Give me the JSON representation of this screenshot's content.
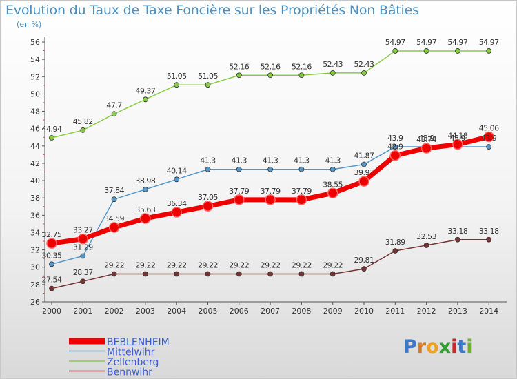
{
  "header": {
    "title": "Evolution du Taux de Taxe Foncière sur les Propriétés Non Bâties",
    "subtitle": "(en %)"
  },
  "logo": {
    "text": "Proxiti"
  },
  "chart_data": {
    "type": "line",
    "x": [
      2000,
      2001,
      2002,
      2003,
      2004,
      2005,
      2006,
      2007,
      2008,
      2009,
      2010,
      2011,
      2012,
      2013,
      2014
    ],
    "ylim": [
      26,
      56
    ],
    "yticks": [
      26,
      28,
      30,
      32,
      34,
      36,
      38,
      40,
      42,
      44,
      46,
      48,
      50,
      52,
      54,
      56
    ],
    "grid": false,
    "legend_position": "bottom-left",
    "series": [
      {
        "name": "BEBLENHEIM",
        "color": "#ee0000",
        "width": 7,
        "values": [
          32.75,
          33.27,
          34.59,
          35.63,
          36.34,
          37.05,
          37.79,
          37.79,
          37.79,
          38.55,
          39.91,
          42.9,
          43.74,
          44.18,
          45.06
        ],
        "labels": [
          "32.75",
          "33.27",
          "34.59",
          "35.63",
          "36.34",
          "37.05",
          "37.79",
          "37.79",
          "37.79",
          "38.55",
          "39.91",
          "42.9",
          "43.74",
          "44.18",
          "45.06"
        ]
      },
      {
        "name": "Mittelwihr",
        "color": "#5599cc",
        "width": 1.5,
        "values": [
          30.35,
          31.29,
          37.84,
          38.98,
          40.14,
          41.3,
          41.3,
          41.3,
          41.3,
          41.3,
          41.87,
          43.9,
          43.9,
          43.9,
          43.9
        ],
        "labels": [
          "30.35",
          "31.29",
          "37.84",
          "38.98",
          "40.14",
          "41.3",
          "41.3",
          "41.3",
          "41.3",
          "41.3",
          "41.87",
          "43.9",
          "43.9",
          "43.9",
          "43.9"
        ]
      },
      {
        "name": "Zellenberg",
        "color": "#88cc44",
        "width": 1.5,
        "values": [
          44.94,
          45.82,
          47.7,
          49.37,
          51.05,
          51.05,
          52.16,
          52.16,
          52.16,
          52.43,
          52.43,
          54.97,
          54.97,
          54.97,
          54.97
        ],
        "labels": [
          "44.94",
          "45.82",
          "47.7",
          "49.37",
          "51.05",
          "51.05",
          "52.16",
          "52.16",
          "52.16",
          "52.43",
          "52.43",
          "54.97",
          "54.97",
          "54.97",
          "54.97"
        ]
      },
      {
        "name": "Bennwihr",
        "color": "#773333",
        "width": 1.5,
        "values": [
          27.54,
          28.37,
          29.22,
          29.22,
          29.22,
          29.22,
          29.22,
          29.22,
          29.22,
          29.22,
          29.81,
          31.89,
          32.53,
          33.18,
          33.18
        ],
        "labels": [
          "27.54",
          "28.37",
          "29.22",
          "29.22",
          "29.22",
          "29.22",
          "29.22",
          "29.22",
          "29.22",
          "29.22",
          "29.81",
          "31.89",
          "32.53",
          "33.18",
          "33.18"
        ]
      }
    ]
  }
}
